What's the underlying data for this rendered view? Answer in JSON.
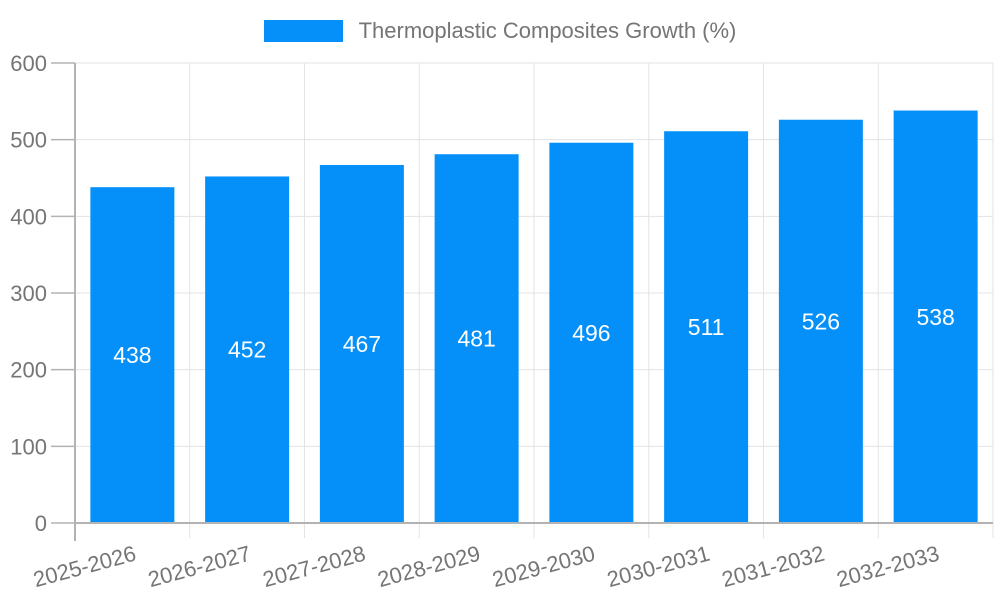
{
  "legend": {
    "label": "Thermoplastic Composites Growth (%)"
  },
  "colors": {
    "bar": "#0490f8",
    "axis_text": "#757575",
    "value_label": "#ffffff",
    "gridline": "#e3e3e3",
    "axis_line": "#b3b3b3",
    "background": "#ffffff"
  },
  "chart_data": {
    "type": "bar",
    "title": "",
    "xlabel": "",
    "ylabel": "",
    "categories": [
      "2025-2026",
      "2026-2027",
      "2027-2028",
      "2028-2029",
      "2029-2030",
      "2030-2031",
      "2031-2032",
      "2032-2033"
    ],
    "series": [
      {
        "name": "Thermoplastic Composites Growth (%)",
        "values": [
          438,
          452,
          467,
          481,
          496,
          511,
          526,
          538
        ]
      }
    ],
    "ylim": [
      0,
      600
    ],
    "yticks": [
      0,
      100,
      200,
      300,
      400,
      500,
      600
    ],
    "grid": true,
    "legend_position": "top",
    "bar_value_labels": true,
    "x_label_rotation_deg": -15
  }
}
